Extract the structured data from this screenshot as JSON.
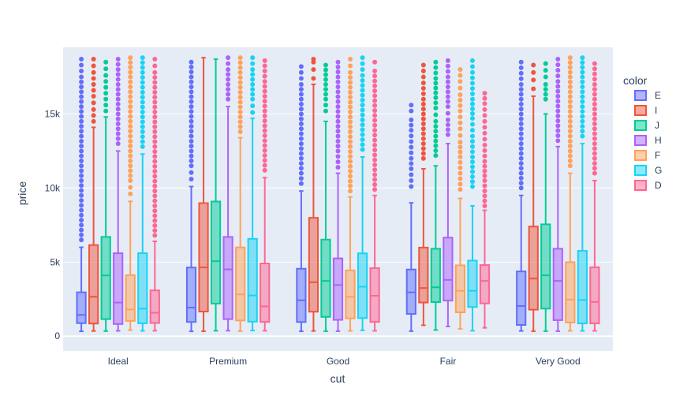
{
  "chart_data": {
    "type": "box",
    "xlabel": "cut",
    "ylabel": "price",
    "legend_title": "color",
    "legend_placement": "right",
    "grid": true,
    "ylim": [
      -1000,
      19500
    ],
    "y_ticks": [
      0,
      5000,
      10000,
      15000
    ],
    "y_tick_labels": [
      "0",
      "5k",
      "10k",
      "15k"
    ],
    "categories": [
      "Ideal",
      "Premium",
      "Good",
      "Fair",
      "Very Good"
    ],
    "series": [
      {
        "name": "E",
        "color": "#636efa",
        "boxes": [
          {
            "min": 326,
            "q1": 878,
            "median": 1437,
            "q3": 2960,
            "max": 6000,
            "outliers": [
              6500,
              7500,
              8500,
              9500,
              10500,
              11500,
              12500,
              13500,
              14500,
              15500,
              16500,
              17500,
              18700
            ]
          },
          {
            "min": 326,
            "q1": 958,
            "median": 1928,
            "q3": 4633,
            "max": 10100,
            "outliers": [
              10600,
              11500,
              12500,
              13500,
              14500,
              15500,
              16500,
              17500,
              18500
            ]
          },
          {
            "min": 327,
            "q1": 954,
            "median": 2420,
            "q3": 4550,
            "max": 9800,
            "outliers": [
              10300,
              11000,
              12000,
              13000,
              14000,
              15000,
              16000,
              17000,
              18200
            ]
          },
          {
            "min": 337,
            "q1": 1500,
            "median": 2956,
            "q3": 4500,
            "max": 9000,
            "outliers": [
              10100,
              11300,
              12000,
              13900,
              14600,
              15200,
              15600
            ]
          },
          {
            "min": 352,
            "q1": 757,
            "median": 2037,
            "q3": 4370,
            "max": 9500,
            "outliers": [
              10000,
              11000,
              12000,
              13000,
              14000,
              15000,
              16000,
              17000,
              18500
            ]
          }
        ]
      },
      {
        "name": "I",
        "color": "#ef553b",
        "boxes": [
          {
            "min": 348,
            "q1": 850,
            "median": 2660,
            "q3": 6150,
            "max": 14100,
            "outliers": [
              14500,
              15300,
              16200,
              17000,
              17800,
              18700
            ]
          },
          {
            "min": 334,
            "q1": 1660,
            "median": 4640,
            "q3": 8980,
            "max": 18800,
            "outliers": []
          },
          {
            "min": 351,
            "q1": 1650,
            "median": 3640,
            "q3": 7990,
            "max": 17000,
            "outliers": [
              17400,
              18000,
              18500,
              18700
            ]
          },
          {
            "min": 735,
            "q1": 2270,
            "median": 3250,
            "q3": 5980,
            "max": 11300,
            "outliers": [
              12000,
              13000,
              14000,
              16000,
              17100,
              18300
            ]
          },
          {
            "min": 336,
            "q1": 1790,
            "median": 3890,
            "q3": 7400,
            "max": 16200,
            "outliers": [
              16700,
              17300,
              17800,
              18300
            ]
          }
        ]
      },
      {
        "name": "J",
        "color": "#00cc96",
        "boxes": [
          {
            "min": 340,
            "q1": 1150,
            "median": 4100,
            "q3": 6700,
            "max": 14800,
            "outliers": [
              15200,
              16000,
              16800,
              17600,
              18500
            ]
          },
          {
            "min": 363,
            "q1": 2200,
            "median": 5060,
            "q3": 9090,
            "max": 18700,
            "outliers": []
          },
          {
            "min": 335,
            "q1": 1300,
            "median": 3730,
            "q3": 6520,
            "max": 14500,
            "outliers": [
              15200,
              16000,
              17000,
              18300
            ]
          },
          {
            "min": 416,
            "q1": 2300,
            "median": 3300,
            "q3": 5900,
            "max": 11500,
            "outliers": [
              12200,
              13500,
              14500,
              15400,
              16100,
              17400,
              18500
            ]
          },
          {
            "min": 336,
            "q1": 1860,
            "median": 4110,
            "q3": 7550,
            "max": 15000,
            "outliers": [
              16000,
              17000,
              17500,
              18400
            ]
          }
        ]
      },
      {
        "name": "H",
        "color": "#ab63fa",
        "boxes": [
          {
            "min": 357,
            "q1": 820,
            "median": 2270,
            "q3": 5600,
            "max": 12500,
            "outliers": [
              13000,
              14000,
              15000,
              16000,
              17000,
              18000,
              18700
            ]
          },
          {
            "min": 368,
            "q1": 1150,
            "median": 4510,
            "q3": 6700,
            "max": 15500,
            "outliers": [
              16000,
              17000,
              18000,
              18800
            ]
          },
          {
            "min": 337,
            "q1": 1100,
            "median": 3450,
            "q3": 5250,
            "max": 11000,
            "outliers": [
              11400,
              12500,
              13500,
              14500,
              15500,
              16500,
              17500,
              18500
            ]
          },
          {
            "min": 659,
            "q1": 2400,
            "median": 3800,
            "q3": 6650,
            "max": 13000,
            "outliers": [
              13600,
              14600,
              15500,
              16500,
              17500,
              18600
            ]
          },
          {
            "min": 337,
            "q1": 1080,
            "median": 3730,
            "q3": 5900,
            "max": 12800,
            "outliers": [
              13200,
              14200,
              15200,
              16200,
              17200,
              18700
            ]
          }
        ]
      },
      {
        "name": "F",
        "color": "#ffa15a",
        "boxes": [
          {
            "min": 408,
            "q1": 1030,
            "median": 1800,
            "q3": 4120,
            "max": 9100,
            "outliers": [
              9600,
              10500,
              11500,
              12500,
              13500,
              14500,
              15500,
              16500,
              17500,
              18800
            ]
          },
          {
            "min": 342,
            "q1": 1060,
            "median": 2820,
            "q3": 5990,
            "max": 13400,
            "outliers": [
              13800,
              14800,
              15800,
              16800,
              17800,
              18800
            ]
          },
          {
            "min": 357,
            "q1": 1200,
            "median": 2660,
            "q3": 4440,
            "max": 9400,
            "outliers": [
              9800,
              10800,
              11800,
              12800,
              13800,
              14800,
              15800,
              16800,
              17800,
              18700
            ]
          },
          {
            "min": 496,
            "q1": 1610,
            "median": 3060,
            "q3": 4780,
            "max": 9300,
            "outliers": [
              9900,
              11000,
              12100,
              13100,
              14000,
              15200,
              16300,
              17200,
              18000
            ]
          },
          {
            "min": 357,
            "q1": 920,
            "median": 2470,
            "q3": 4990,
            "max": 11000,
            "outliers": [
              11500,
              12500,
              13500,
              14500,
              15500,
              16500,
              17500,
              18800
            ]
          }
        ]
      },
      {
        "name": "G",
        "color": "#19d3f3",
        "boxes": [
          {
            "min": 361,
            "q1": 870,
            "median": 1860,
            "q3": 5600,
            "max": 12300,
            "outliers": [
              12800,
              13800,
              14800,
              15800,
              16800,
              17800,
              18800
            ]
          },
          {
            "min": 382,
            "q1": 980,
            "median": 2750,
            "q3": 6570,
            "max": 14700,
            "outliers": [
              15100,
              16000,
              17000,
              18000,
              18800
            ]
          },
          {
            "min": 394,
            "q1": 1220,
            "median": 3340,
            "q3": 5590,
            "max": 12100,
            "outliers": [
              12600,
              13600,
              14600,
              15600,
              16600,
              17600,
              18800
            ]
          },
          {
            "min": 369,
            "q1": 1970,
            "median": 3060,
            "q3": 5100,
            "max": 8800,
            "outliers": [
              10100,
              12100,
              13500,
              14700,
              16000,
              17800,
              18600
            ]
          },
          {
            "min": 354,
            "q1": 860,
            "median": 2440,
            "q3": 5760,
            "max": 13000,
            "outliers": [
              13500,
              14500,
              15500,
              16500,
              17500,
              18800
            ]
          }
        ]
      },
      {
        "name": "D",
        "color": "#ff6692",
        "boxes": [
          {
            "min": 367,
            "q1": 890,
            "median": 1580,
            "q3": 3090,
            "max": 6400,
            "outliers": [
              6800,
              7800,
              8800,
              9800,
              10800,
              11800,
              12800,
              13800,
              14800,
              15800,
              16800,
              17800,
              18700
            ]
          },
          {
            "min": 367,
            "q1": 960,
            "median": 2010,
            "q3": 4910,
            "max": 10700,
            "outliers": [
              11200,
              12200,
              13200,
              14200,
              15200,
              16200,
              17200,
              18600
            ]
          },
          {
            "min": 361,
            "q1": 960,
            "median": 2730,
            "q3": 4590,
            "max": 9500,
            "outliers": [
              9900,
              10900,
              11900,
              12900,
              13900,
              14900,
              15900,
              16900,
              17900,
              18500
            ]
          },
          {
            "min": 563,
            "q1": 2210,
            "median": 3730,
            "q3": 4800,
            "max": 8500,
            "outliers": [
              8800,
              9800,
              10500,
              11800,
              12900,
              13700,
              14900,
              15700,
              16400
            ]
          },
          {
            "min": 357,
            "q1": 860,
            "median": 2310,
            "q3": 4650,
            "max": 10500,
            "outliers": [
              11000,
              12000,
              13000,
              14000,
              15000,
              16000,
              17000,
              18400
            ]
          }
        ]
      }
    ]
  }
}
